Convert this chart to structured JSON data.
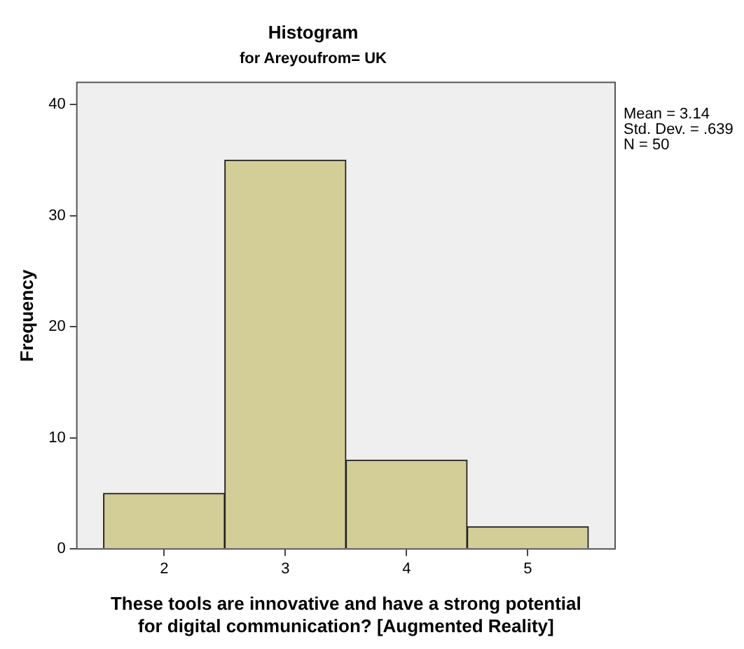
{
  "chart_data": {
    "type": "histogram",
    "title": "Histogram",
    "subtitle": "for Areyoufrom= UK",
    "xlabel": "These tools are innovative and have a strong potential for digital communication? [Augmented Reality]",
    "ylabel": "Frequency",
    "bins": [
      1.5,
      2.5,
      3.5,
      4.5,
      5.5
    ],
    "values": [
      5,
      35,
      8,
      2
    ],
    "color": "#d3ce98",
    "xlim": [
      1.28,
      5.72
    ],
    "xticks": [
      2,
      3,
      4,
      5
    ],
    "ylim": [
      0,
      42
    ],
    "yticks": [
      0,
      10,
      20,
      30,
      40
    ],
    "grid": false,
    "legend": false,
    "annotations": [
      "Mean = 3.14",
      "Std. Dev. = .639",
      "N = 50"
    ]
  }
}
